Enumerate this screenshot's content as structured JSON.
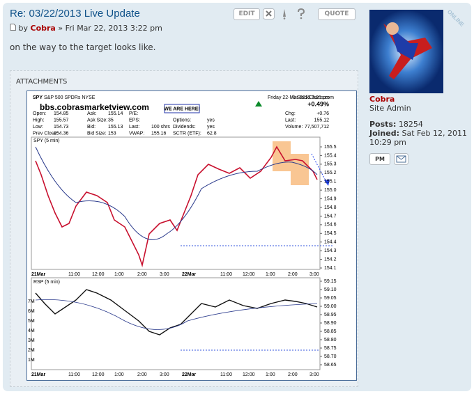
{
  "post": {
    "title": "Re: 03/22/2013 Live Update",
    "edit": "EDIT",
    "quote": "QUOTE",
    "by": "by",
    "author": "Cobra",
    "date": "» Fri Mar 22, 2013 3:22 pm",
    "content": "on the way to the target looks like."
  },
  "attachments": {
    "label": "ATTACHMENTS",
    "image": {
      "symbol": "SPY",
      "name": "S&P 500 SPDRs NYSE",
      "source": "© StockCharts.com",
      "watermark": "bbs.cobrasmarketview.com",
      "callout": "WE ARE HERE!",
      "datetime": "Friday 22-Mar-2013 3:21 pm",
      "change_pct": "+0.49%",
      "columns": [
        {
          "labels": [
            "Open:",
            "High:",
            "Low:",
            "Prev Close:"
          ],
          "values": [
            "154.85",
            "155.57",
            "154.73",
            "154.36"
          ]
        },
        {
          "labels": [
            "Ask:",
            "Ask Size:",
            "Bid:",
            "Bid Size:"
          ],
          "values": [
            "155.14",
            "35",
            "155.13",
            "153"
          ]
        },
        {
          "labels": [
            "P/E:",
            "EPS:",
            "Last:",
            "VWAP:"
          ],
          "values": [
            null,
            null,
            "100 shrs",
            "155.16"
          ]
        },
        {
          "labels": [
            null,
            "Options:",
            "Dividends:",
            "SCTR (ETF):"
          ],
          "values": [
            null,
            "yes",
            "yes",
            "62.8"
          ]
        }
      ],
      "stats": {
        "labels": [
          "Chg:",
          "Last:",
          "Volume:"
        ],
        "values": [
          "+0.76",
          "155.12",
          "77,507,712"
        ]
      },
      "price_panel": "SPY (5 min)",
      "rsp_panel": "RSP (5 min)",
      "x_labels": [
        "21Mar",
        "11:00",
        "12:00",
        "1:00",
        "2:00",
        "3:00",
        "22Mar",
        "11:00",
        "12:00",
        "1:00",
        "2:00",
        "3:00"
      ],
      "price_ticks": [
        155.5,
        155.4,
        155.3,
        155.2,
        155.1,
        {
          "value": 155,
          "label": "155.0"
        },
        154.9,
        154.8,
        154.7,
        154.6,
        154.5,
        154.4,
        154.3,
        154.2,
        154.1
      ],
      "rsp_ticks": [
        59.15,
        {
          "value": 59.1,
          "label": "59.10"
        },
        59.05,
        {
          "value": 59,
          "label": "59.00"
        },
        58.95,
        {
          "value": 58.9,
          "label": "58.90"
        },
        58.85,
        {
          "value": 58.8,
          "label": "58.80"
        },
        58.75,
        {
          "value": 58.7,
          "label": "58.70"
        },
        58.65
      ],
      "volume_ticks": [
        {
          "value": 7000000,
          "label": "7M"
        },
        {
          "value": 6000000,
          "label": "6M"
        },
        {
          "value": 5000000,
          "label": "5M"
        },
        {
          "value": 4000000,
          "label": "4M"
        },
        {
          "value": 3000000,
          "label": "3M"
        },
        {
          "value": 2000000,
          "label": "2M"
        },
        {
          "value": 1000000,
          "label": "1M"
        }
      ]
    }
  },
  "profile": {
    "status": "ONLINE",
    "name": "Cobra",
    "rank": "Site Admin",
    "posts_label": "Posts:",
    "posts": "18254",
    "joined_label": "Joined:",
    "joined": "Sat Feb 12, 2011 10:29 pm",
    "pm": "PM"
  }
}
